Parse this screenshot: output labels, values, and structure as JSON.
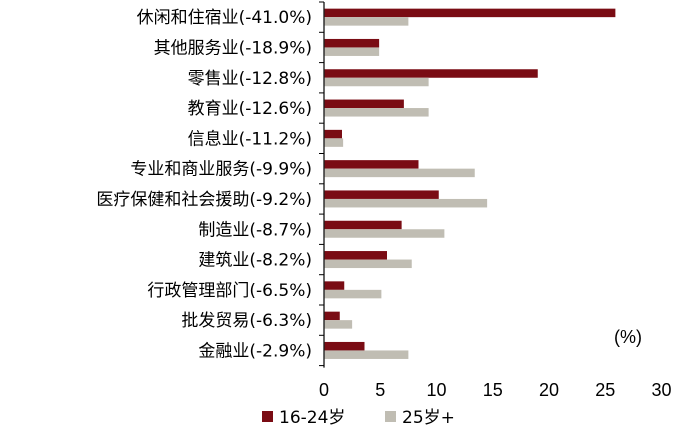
{
  "chart_data": {
    "type": "bar",
    "orientation": "horizontal",
    "categories": [
      "休闲和住宿业(-41.0%)",
      "其他服务业(-18.9%)",
      "零售业(-12.8%)",
      "教育业(-12.6%)",
      "信息业(-11.2%)",
      "专业和商业服务(-9.9%)",
      "医疗保健和社会援助(-9.2%)",
      "制造业(-8.7%)",
      "建筑业(-8.2%)",
      "行政管理部门(-6.5%)",
      "批发贸易(-6.3%)",
      "金融业(-2.9%)"
    ],
    "series": [
      {
        "name": "16-24岁",
        "color": "#7a0c14",
        "values": [
          25.9,
          4.9,
          19.0,
          7.1,
          1.6,
          8.4,
          10.2,
          6.9,
          5.6,
          1.8,
          1.4,
          3.6
        ]
      },
      {
        "name": "25岁+",
        "color": "#c0bdb3",
        "values": [
          7.5,
          4.9,
          9.3,
          9.3,
          1.7,
          13.4,
          14.5,
          10.7,
          7.8,
          5.1,
          2.5,
          7.5
        ]
      }
    ],
    "xlim": [
      0,
      30
    ],
    "xticks": [
      "0",
      "5",
      "10",
      "15",
      "20",
      "25",
      "30"
    ],
    "unit_label": "(%)",
    "legend_position": "bottom",
    "grid": false
  }
}
